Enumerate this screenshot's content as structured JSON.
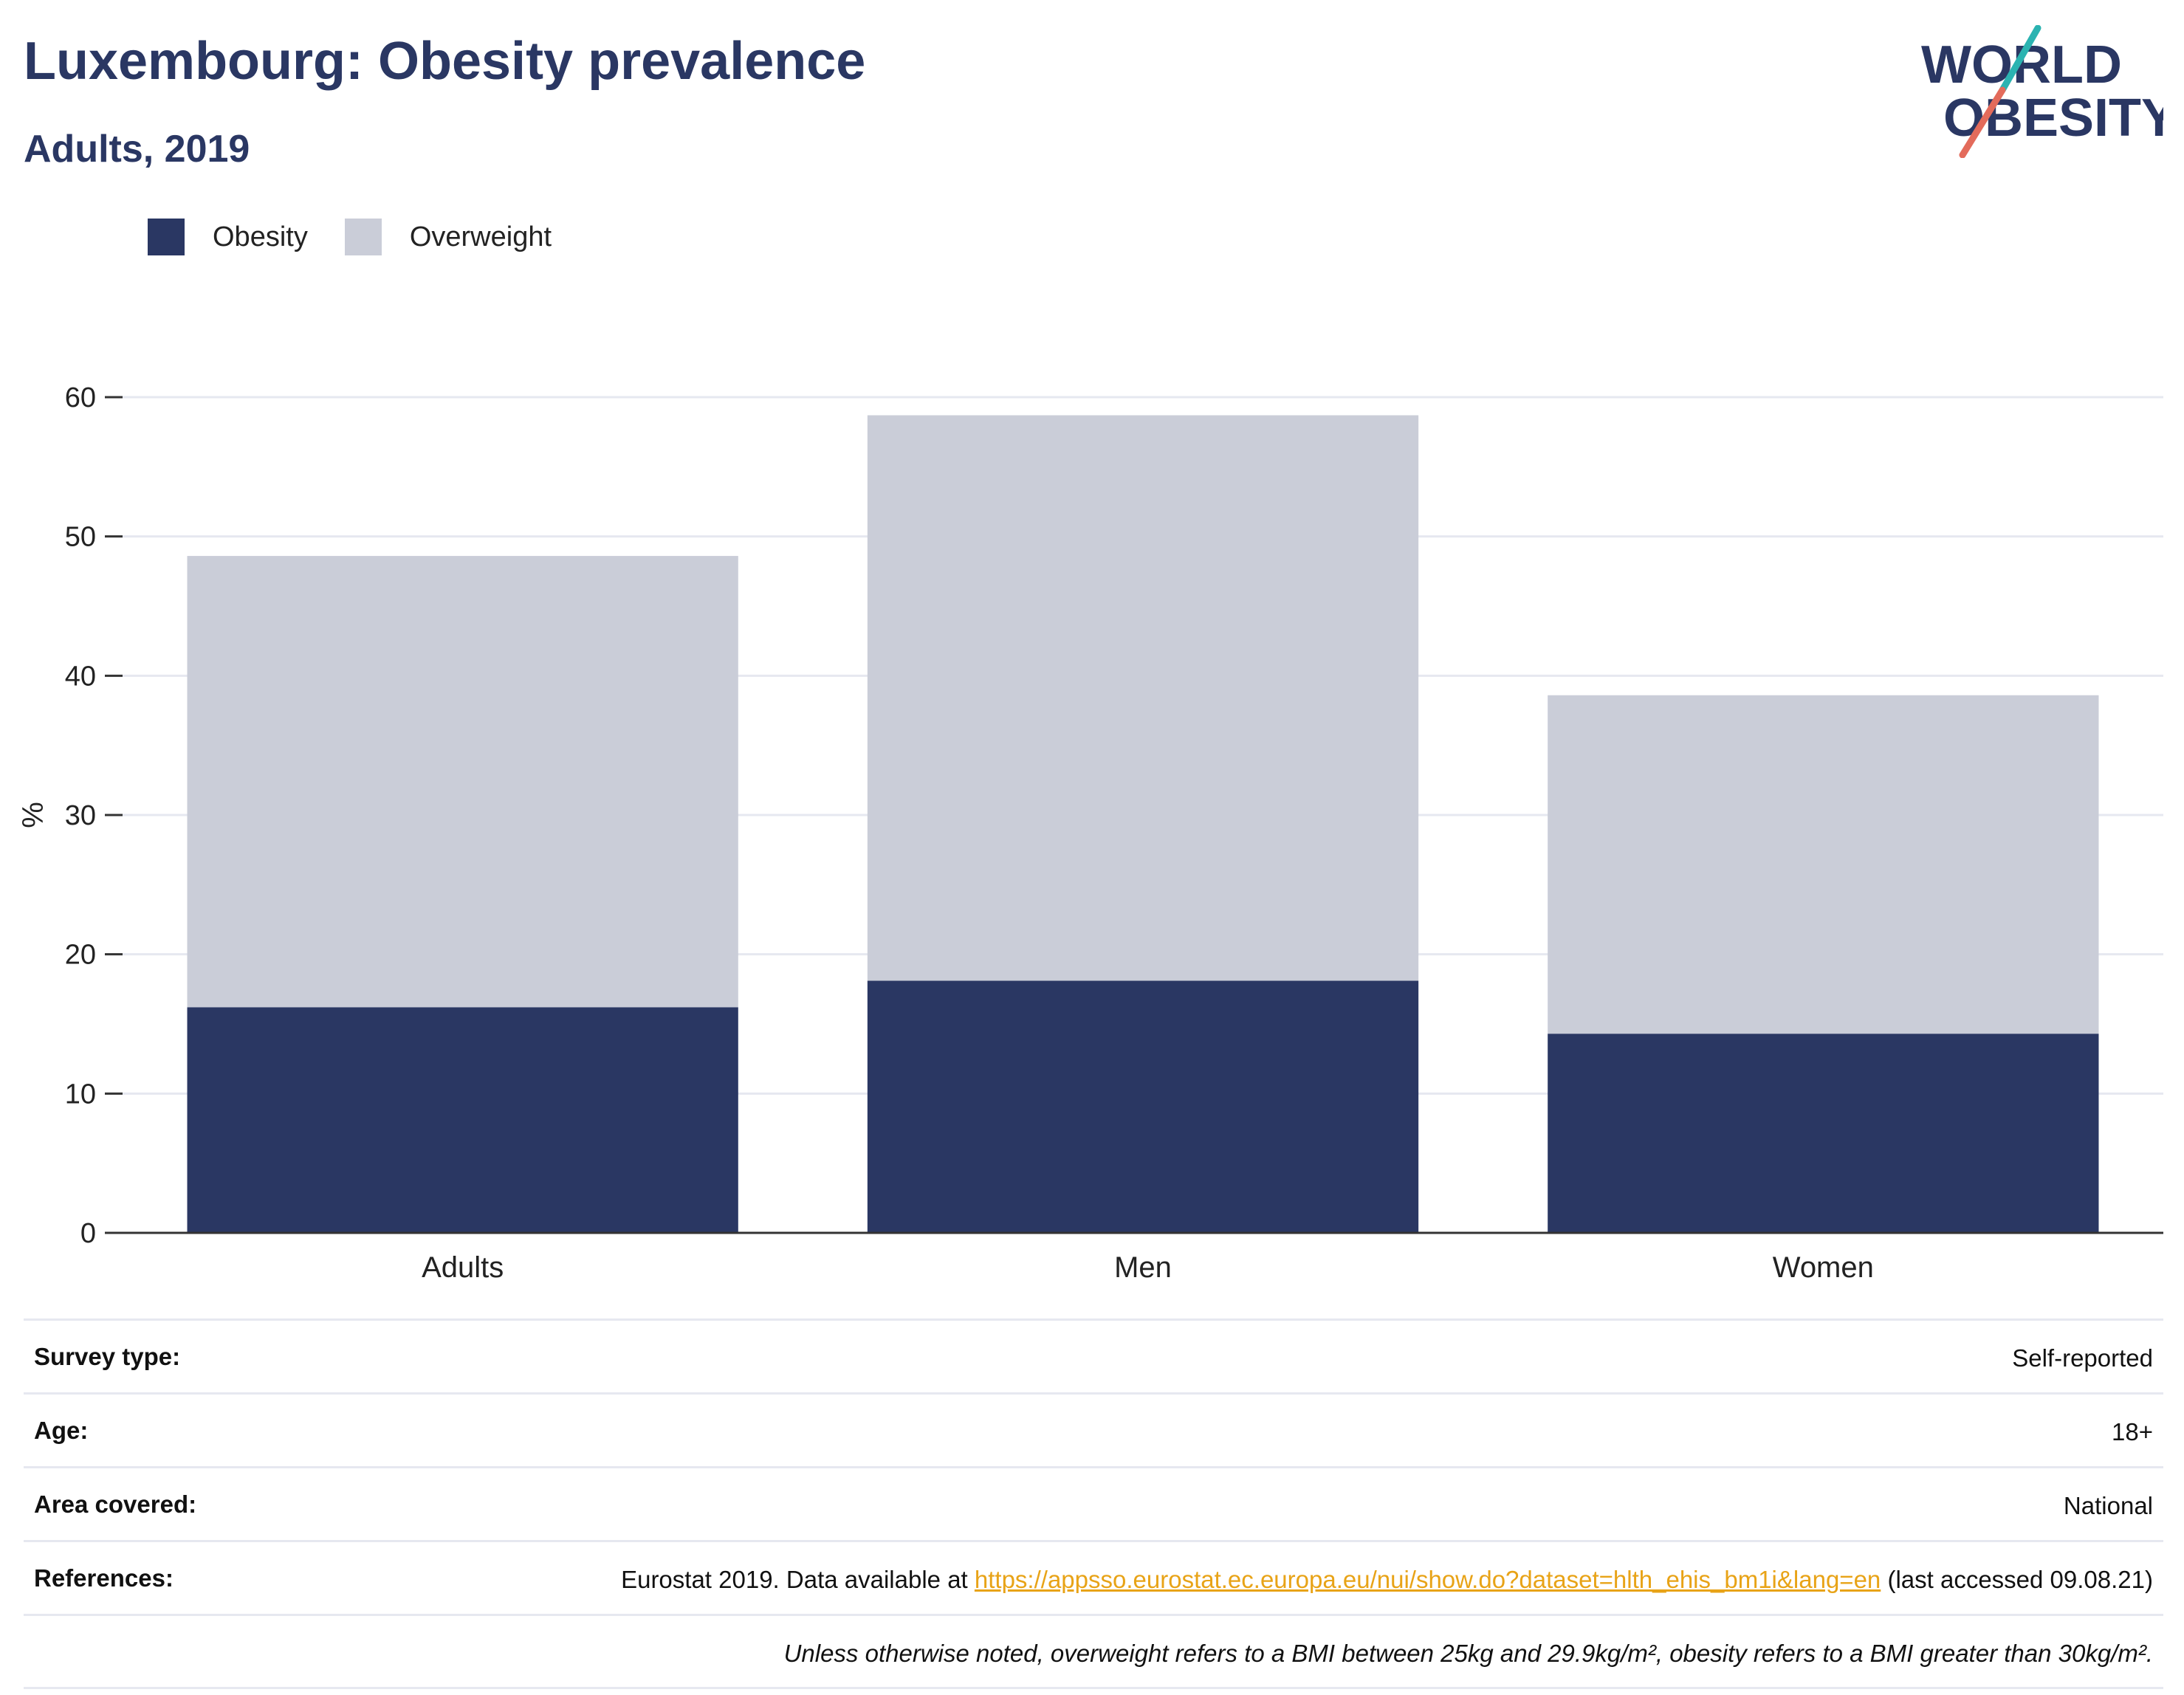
{
  "header": {
    "title": "Luxembourg: Obesity prevalence",
    "subtitle": "Adults, 2019"
  },
  "logo": {
    "line1": "WORLD",
    "line2": "OBESITY"
  },
  "colors": {
    "obesity": "#2a3763",
    "overweight": "#cacdd8",
    "title": "#2a3763",
    "accent_teal": "#2bb3b1",
    "accent_coral": "#e36b5b"
  },
  "chart_data": {
    "type": "bar",
    "stacked": true,
    "categories": [
      "Adults",
      "Men",
      "Women"
    ],
    "series": [
      {
        "name": "Obesity",
        "values": [
          16.2,
          18.1,
          14.3
        ]
      },
      {
        "name": "Overweight",
        "values": [
          32.4,
          40.6,
          24.3
        ]
      }
    ],
    "ylabel": "%",
    "ylim": [
      0,
      60
    ],
    "yticks": [
      0,
      10,
      20,
      30,
      40,
      50,
      60
    ],
    "grid": true,
    "legend": "top-left"
  },
  "info": {
    "survey_type_label": "Survey type:",
    "survey_type_value": "Self-reported",
    "age_label": "Age:",
    "age_value": "18+",
    "area_label": "Area covered:",
    "area_value": "National",
    "references_label": "References:",
    "references_prefix": "Eurostat 2019. Data available at ",
    "references_link": "https://appsso.eurostat.ec.europa.eu/nui/show.do?dataset=hlth_ehis_bm1i&lang=en",
    "references_suffix": " (last accessed 09.08.21)",
    "note": "Unless otherwise noted, overweight refers to a BMI between 25kg and 29.9kg/m², obesity refers to a BMI greater than 30kg/m²."
  }
}
